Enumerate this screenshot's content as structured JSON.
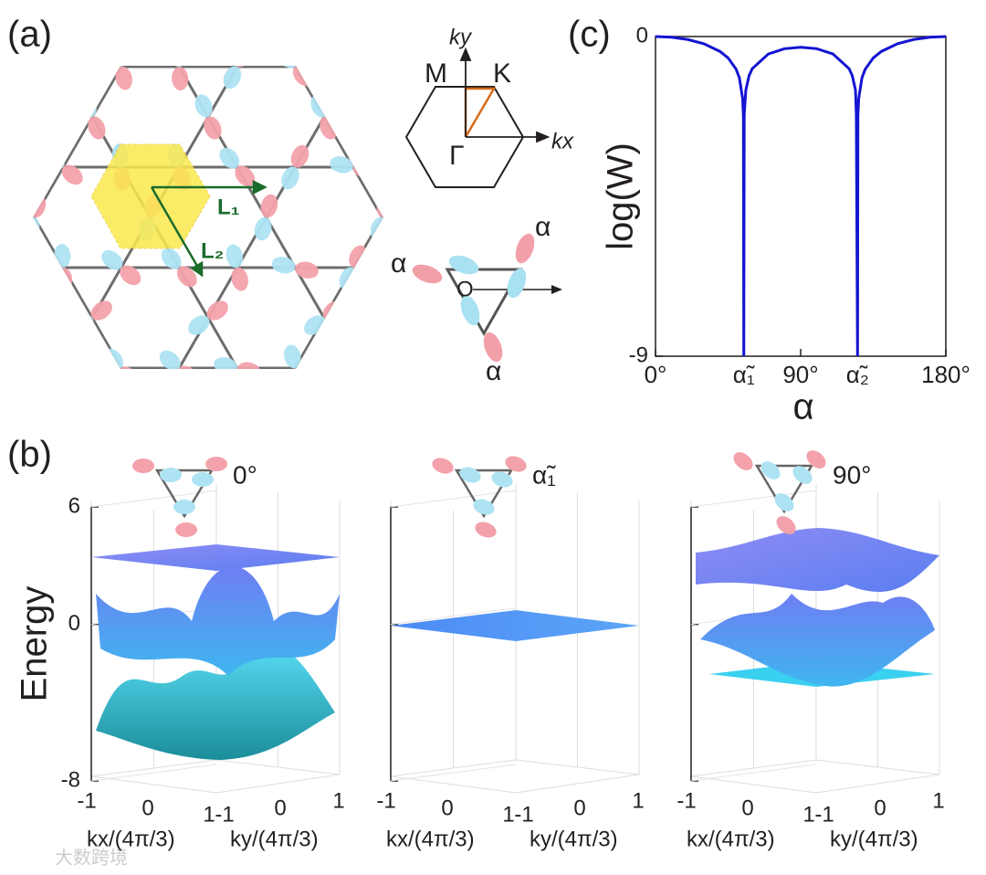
{
  "panel_a": {
    "label": "(a)",
    "lattice_vectors": [
      "L₁",
      "L₂"
    ],
    "bz_points": [
      "M",
      "K",
      "Γ"
    ],
    "bz_axes": [
      "ky",
      "kx"
    ],
    "origin": "O",
    "angle_labels": [
      "α",
      "α",
      "α"
    ]
  },
  "panel_b": {
    "label": "(b)",
    "z_label": "Energy",
    "zlim": [
      -8,
      6
    ],
    "zticks": [
      6,
      0,
      -8
    ],
    "plots": [
      {
        "angle": "0°",
        "x_label": "kx/(4π/3)",
        "y_label": "ky/(4π/3)",
        "x_ticks": [
          -1,
          0,
          1
        ],
        "y_ticks": [
          -1,
          0,
          1
        ]
      },
      {
        "angle": "α̃₁",
        "x_label": "kx/(4π/3)",
        "y_label": "ky/(4π/3)",
        "x_ticks": [
          -1,
          0,
          1
        ],
        "y_ticks": [
          -1,
          0,
          1
        ]
      },
      {
        "angle": "90°",
        "x_label": "kx/(4π/3)",
        "y_label": "ky/(4π/3)",
        "x_ticks": [
          -1,
          0,
          1
        ],
        "y_ticks": [
          -1,
          0,
          1
        ]
      }
    ]
  },
  "watermark": "大数跨境",
  "chart_data": {
    "type": "line",
    "panel_label": "(c)",
    "x_label": "α",
    "y_label": "log(W)",
    "color": "#1414d2",
    "x": [
      0,
      10,
      20,
      30,
      40,
      45,
      50,
      52,
      54,
      54.5,
      54.74,
      55,
      56,
      58,
      60,
      70,
      80,
      90,
      100,
      110,
      120,
      122,
      124,
      124.5,
      125.26,
      125.5,
      126,
      128,
      130,
      135,
      140,
      150,
      160,
      170,
      180
    ],
    "values": [
      0,
      -0.02,
      -0.084,
      -0.204,
      -0.42,
      -0.602,
      -0.921,
      -1.164,
      -1.739,
      -2.24,
      -9,
      -2.19,
      -1.509,
      -1.103,
      -0.903,
      -0.489,
      -0.342,
      -0.301,
      -0.342,
      -0.489,
      -0.903,
      -1.103,
      -1.509,
      -2.19,
      -9,
      -2.24,
      -1.739,
      -1.164,
      -0.921,
      -0.602,
      -0.42,
      -0.204,
      -0.084,
      -0.02,
      0
    ],
    "xlim": [
      0,
      180
    ],
    "ylim": [
      -9,
      0
    ],
    "xticks": [
      {
        "value": 0,
        "label": "0°"
      },
      {
        "value": 54.74,
        "label": "α̃₁"
      },
      {
        "value": 90,
        "label": "90°"
      },
      {
        "value": 125.26,
        "label": "α̃₂"
      },
      {
        "value": 180,
        "label": "180°"
      }
    ],
    "yticks": [
      0,
      -9
    ]
  }
}
